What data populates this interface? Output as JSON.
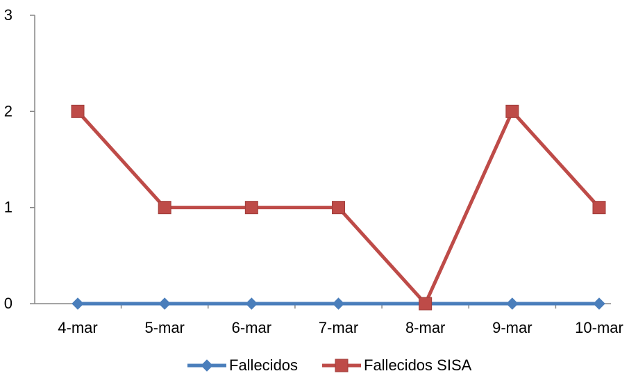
{
  "chart_data": {
    "type": "line",
    "title": "",
    "xlabel": "",
    "ylabel": "",
    "categories": [
      "4-mar",
      "5-mar",
      "6-mar",
      "7-mar",
      "8-mar",
      "9-mar",
      "10-mar"
    ],
    "ylim": [
      0,
      3
    ],
    "yticks": [
      "0",
      "1",
      "2",
      "3"
    ],
    "grid": false,
    "legend_position": "bottom",
    "series": [
      {
        "name": "Fallecidos",
        "values": [
          0,
          0,
          0,
          0,
          0,
          0,
          0
        ],
        "color": "#4a7ebb",
        "marker": "diamond"
      },
      {
        "name": "Fallecidos SISA",
        "values": [
          2,
          1,
          1,
          1,
          0,
          2,
          1
        ],
        "color": "#be4b48",
        "marker": "square"
      }
    ]
  }
}
